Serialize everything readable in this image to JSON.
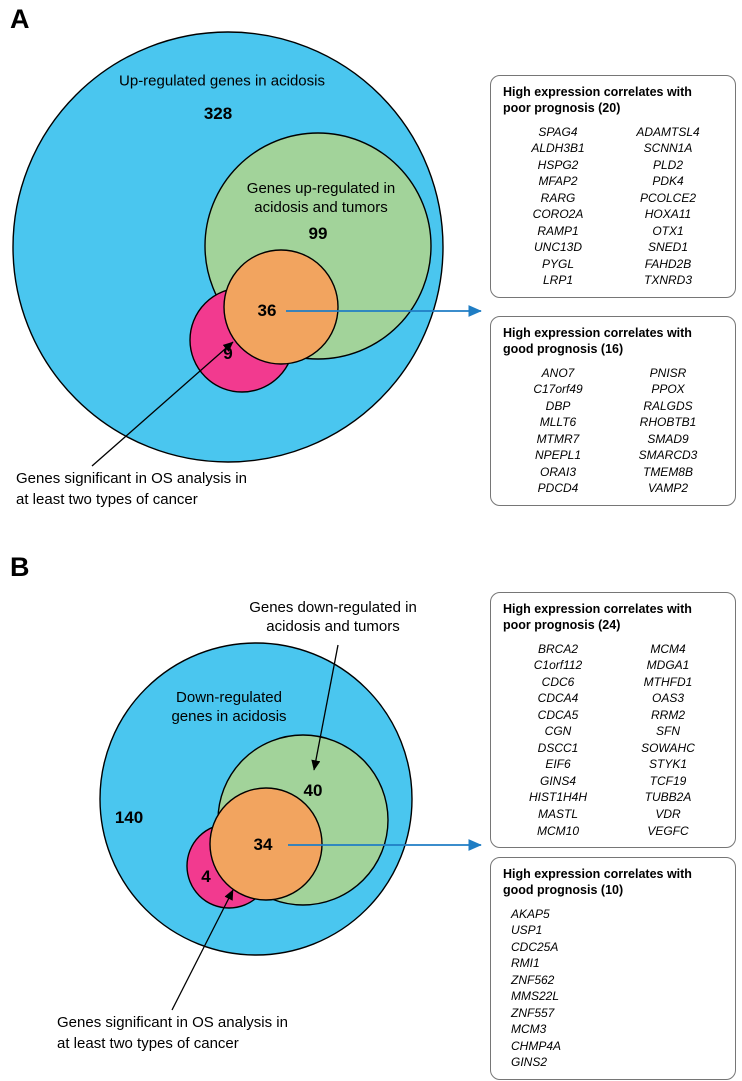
{
  "colors": {
    "blue": "#4AC6EF",
    "green": "#A2D39A",
    "orange": "#F2A45F",
    "pink": "#F23A8F",
    "arrow_blue": "#1F7DC4"
  },
  "panelA": {
    "label": "A",
    "venn": {
      "blue_label": "Up-regulated genes in acidosis",
      "blue_count": "328",
      "green_label": "Genes up-regulated in acidosis and tumors",
      "green_count": "99",
      "overlap_count": "36",
      "os_count": "9"
    },
    "os_note": "Genes significant in OS analysis in at least two types of cancer",
    "poor_box": {
      "title": "High expression correlates with poor prognosis (20)",
      "col1": [
        "SPAG4",
        "ALDH3B1",
        "HSPG2",
        "MFAP2",
        "RARG",
        "CORO2A",
        "RAMP1",
        "UNC13D",
        "PYGL",
        "LRP1"
      ],
      "col2": [
        "ADAMTSL4",
        "SCNN1A",
        "PLD2",
        "PDK4",
        "PCOLCE2",
        "HOXA11",
        "OTX1",
        "SNED1",
        "FAHD2B",
        "TXNRD3"
      ]
    },
    "good_box": {
      "title": "High expression correlates with good prognosis (16)",
      "col1": [
        "ANO7",
        "C17orf49",
        "DBP",
        "MLLT6",
        "MTMR7",
        "NPEPL1",
        "ORAI3",
        "PDCD4"
      ],
      "col2": [
        "PNISR",
        "PPOX",
        "RALGDS",
        "RHOBTB1",
        "SMAD9",
        "SMARCD3",
        "TMEM8B",
        "VAMP2"
      ]
    }
  },
  "panelB": {
    "label": "B",
    "venn": {
      "blue_label": "Down-regulated genes in acidosis",
      "blue_count": "140",
      "green_label": "Genes down-regulated in acidosis and tumors",
      "green_count": "40",
      "overlap_count": "34",
      "os_count": "4"
    },
    "os_note": "Genes significant in OS analysis in at least two types of cancer",
    "poor_box": {
      "title": "High expression correlates with poor prognosis (24)",
      "col1": [
        "BRCA2",
        "C1orf112",
        "CDC6",
        "CDCA4",
        "CDCA5",
        "CGN",
        "DSCC1",
        "EIF6",
        "GINS4",
        "HIST1H4H",
        "MASTL",
        "MCM10"
      ],
      "col2": [
        "MCM4",
        "MDGA1",
        "MTHFD1",
        "OAS3",
        "RRM2",
        "SFN",
        "SOWAHC",
        "STYK1",
        "TCF19",
        "TUBB2A",
        "VDR",
        "VEGFC"
      ]
    },
    "good_box": {
      "title": "High expression correlates with good prognosis (10)",
      "col1": [
        "AKAP5",
        "USP1",
        "CDC25A",
        "RMI1",
        "ZNF562",
        "MMS22L",
        "ZNF557",
        "MCM3",
        "CHMP4A",
        "GINS2"
      ],
      "col2": []
    }
  }
}
